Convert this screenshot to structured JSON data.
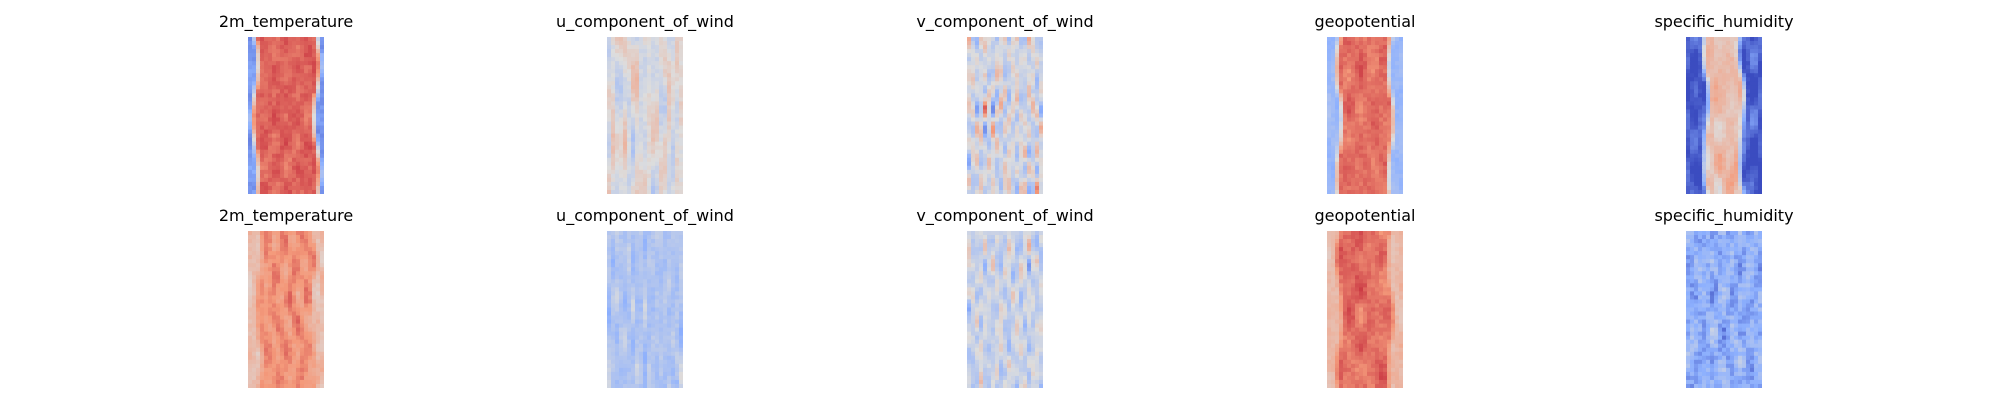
{
  "chart_data": {
    "type": "heatmap",
    "colormap": "coolwarm",
    "colormap_stops": [
      "#3b4cc0",
      "#8db0fe",
      "#dddddd",
      "#f49a7b",
      "#b40426"
    ],
    "rows": [
      {
        "panels": [
          {
            "title": "2m_temperature",
            "pattern": "band",
            "band_level": 0.84,
            "edge_level": 0.18,
            "band_half_width": 0.37,
            "variation": 0.08
          },
          {
            "title": "u_component_of_wind",
            "pattern": "streaks",
            "base_level": 0.5,
            "variation": 0.34
          },
          {
            "title": "v_component_of_wind",
            "pattern": "eddies",
            "base_level": 0.47,
            "variation": 0.4
          },
          {
            "title": "geopotential",
            "pattern": "band",
            "band_level": 0.82,
            "edge_level": 0.3,
            "band_half_width": 0.3,
            "variation": 0.09
          },
          {
            "title": "specific_humidity",
            "pattern": "band",
            "band_level": 0.62,
            "edge_level": 0.04,
            "band_half_width": 0.2,
            "variation": 0.24
          }
        ]
      },
      {
        "panels": [
          {
            "title": "2m_temperature",
            "pattern": "band",
            "band_level": 0.76,
            "edge_level": 0.62,
            "band_half_width": 0.32,
            "variation": 0.14
          },
          {
            "title": "u_component_of_wind",
            "pattern": "streaks",
            "base_level": 0.36,
            "variation": 0.22
          },
          {
            "title": "v_component_of_wind",
            "pattern": "eddies",
            "base_level": 0.44,
            "variation": 0.32
          },
          {
            "title": "geopotential",
            "pattern": "band",
            "band_level": 0.82,
            "edge_level": 0.64,
            "band_half_width": 0.3,
            "variation": 0.11
          },
          {
            "title": "specific_humidity",
            "pattern": "noise",
            "base_level": 0.26,
            "variation": 0.2
          }
        ]
      }
    ]
  }
}
